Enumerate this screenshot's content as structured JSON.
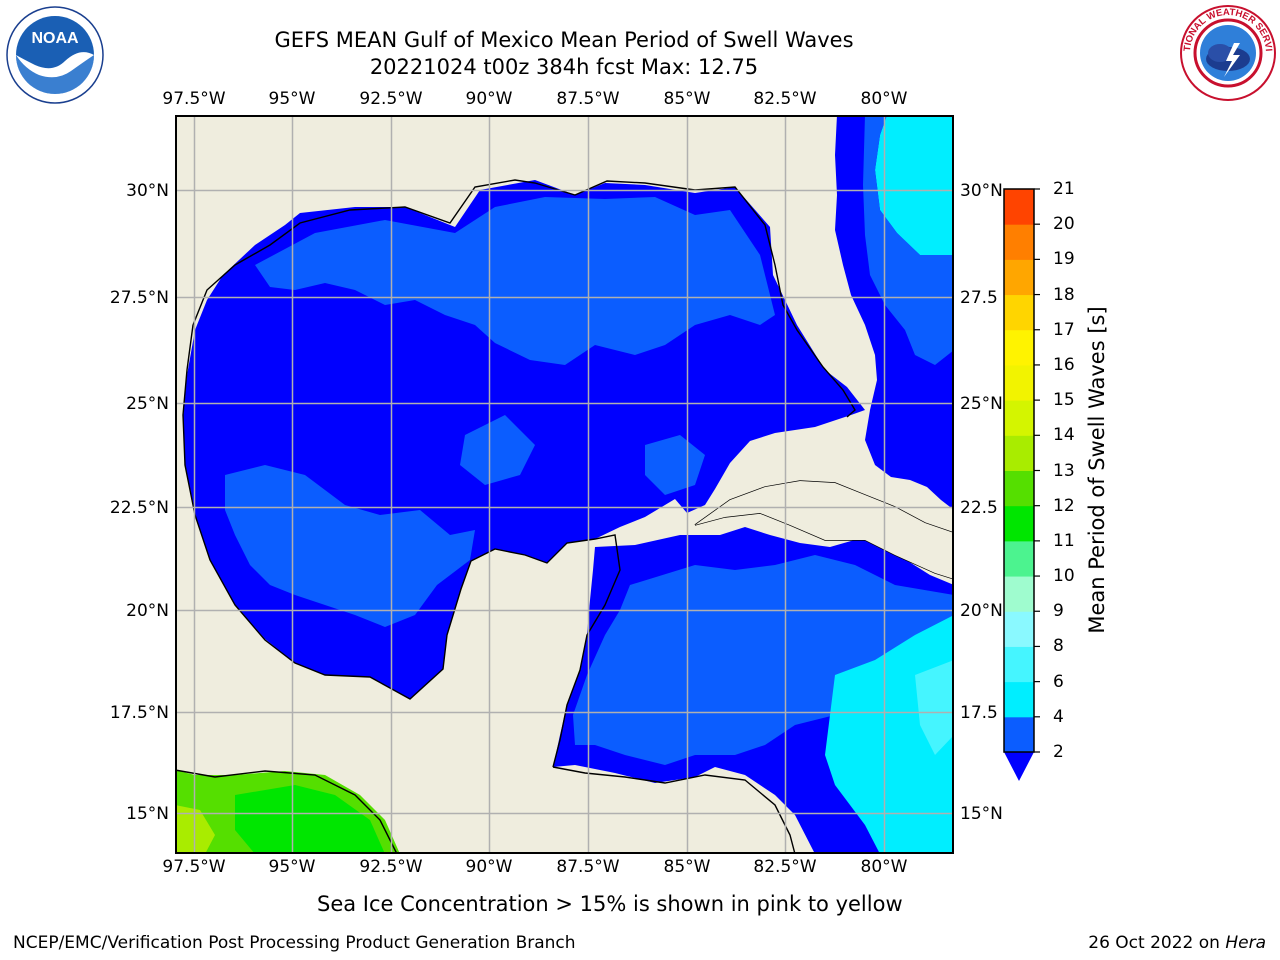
{
  "title": {
    "line1": "GEFS MEAN Gulf of Mexico Mean Period of Swell Waves",
    "line2": "20221024 t00z 384h fcst   Max: 12.75"
  },
  "map": {
    "lon_labels": [
      "97.5°W",
      "95°W",
      "92.5°W",
      "90°W",
      "87.5°W",
      "85°W",
      "82.5°W",
      "80°W"
    ],
    "lat_labels_left": [
      "30°N",
      "27.5°N",
      "25°N",
      "22.5°N",
      "20°N",
      "17.5°N",
      "15°N"
    ],
    "lat_labels_right": [
      "30°N",
      "27.5",
      "25°N",
      "22.5",
      "20°N",
      "17.5",
      "15°N"
    ],
    "extent": {
      "lon": [
        -98,
        -78.4
      ],
      "lat": [
        14.1,
        31.7
      ]
    },
    "colors": {
      "land": "#efedde",
      "grid": "#b0b0b0"
    }
  },
  "colorbar": {
    "label": "Mean Period of Swell Waves [s]",
    "ticks": [
      "2",
      "4",
      "6",
      "8",
      "9",
      "10",
      "11",
      "12",
      "13",
      "14",
      "15",
      "16",
      "17",
      "18",
      "19",
      "20",
      "21"
    ],
    "colors": [
      "#0b5dff",
      "#00eeff",
      "#45f5ff",
      "#8af9ff",
      "#9ffccf",
      "#4cf38f",
      "#00e600",
      "#55df00",
      "#a9ec00",
      "#d4f500",
      "#f2f300",
      "#fff300",
      "#ffd500",
      "#ffa600",
      "#ff7f00",
      "#ff4400",
      "#ff1100",
      "#ff0000"
    ],
    "extend_color": "#0000ff"
  },
  "footer": {
    "note": "Sea Ice Concentration > 15% is shown in pink to yellow",
    "credit": "NCEP/EMC/Verification Post Processing Product Generation Branch",
    "date": "26 Oct 2022 on ",
    "host": "Hera"
  },
  "logos": {
    "noaa_text": "NOAA",
    "nws_text": "NATIONAL WEATHER SERVICE"
  }
}
